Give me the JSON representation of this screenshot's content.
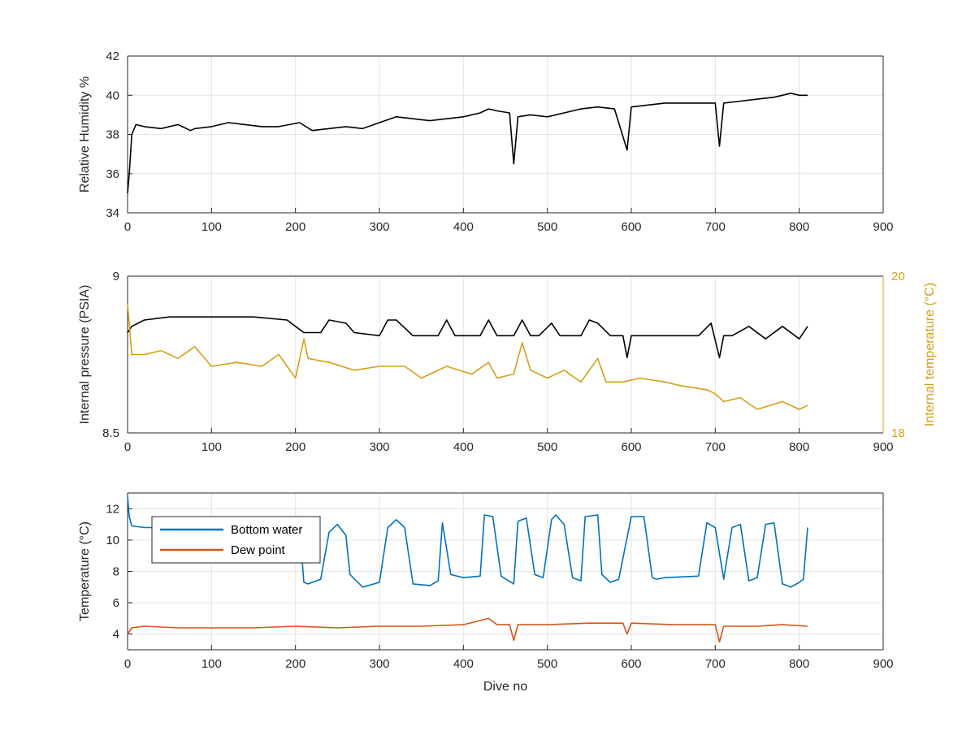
{
  "chart_data": [
    {
      "type": "line",
      "xlabel": "",
      "ylabel": "Relative Humidity %",
      "xlim": [
        0,
        900
      ],
      "ylim": [
        34,
        42
      ],
      "xticks": [
        "0",
        "100",
        "200",
        "300",
        "400",
        "500",
        "600",
        "700",
        "800",
        "900"
      ],
      "yticks": [
        "34",
        "36",
        "38",
        "40",
        "42"
      ],
      "grid": true,
      "series": [
        {
          "color": "#000000",
          "x": [
            0,
            2,
            5,
            10,
            20,
            40,
            60,
            75,
            80,
            100,
            120,
            140,
            160,
            180,
            205,
            220,
            240,
            260,
            280,
            300,
            320,
            340,
            360,
            380,
            400,
            420,
            430,
            440,
            455,
            460,
            465,
            480,
            500,
            520,
            540,
            560,
            580,
            595,
            600,
            620,
            640,
            660,
            680,
            700,
            705,
            710,
            730,
            750,
            770,
            780,
            790,
            800,
            810
          ],
          "y": [
            35,
            36,
            38,
            38.5,
            38.4,
            38.3,
            38.5,
            38.2,
            38.3,
            38.4,
            38.6,
            38.5,
            38.4,
            38.4,
            38.6,
            38.2,
            38.3,
            38.4,
            38.3,
            38.6,
            38.9,
            38.8,
            38.7,
            38.8,
            38.9,
            39.1,
            39.3,
            39.2,
            39.1,
            36.5,
            38.9,
            39.0,
            38.9,
            39.1,
            39.3,
            39.4,
            39.3,
            37.2,
            39.4,
            39.5,
            39.6,
            39.6,
            39.6,
            39.6,
            37.4,
            39.6,
            39.7,
            39.8,
            39.9,
            40.0,
            40.1,
            40.0,
            40.0
          ]
        }
      ]
    },
    {
      "type": "line",
      "xlabel": "",
      "ylabel": "Internal pressure (PSIA)",
      "ylabel_right": "Internal temperature (°C)",
      "xlim": [
        0,
        900
      ],
      "ylim": [
        8.5,
        9
      ],
      "ylim_right": [
        18,
        20
      ],
      "xticks": [
        "0",
        "100",
        "200",
        "300",
        "400",
        "500",
        "600",
        "700",
        "800",
        "900"
      ],
      "yticks": [
        "8.5",
        "9"
      ],
      "yticks_right": [
        "18",
        "20"
      ],
      "right_axis_color": "#D4A017",
      "grid": true,
      "series": [
        {
          "axis": "left",
          "color": "#000000",
          "x": [
            0,
            5,
            20,
            50,
            80,
            110,
            150,
            190,
            200,
            210,
            230,
            240,
            260,
            270,
            300,
            310,
            320,
            340,
            370,
            380,
            390,
            420,
            430,
            440,
            460,
            470,
            480,
            490,
            505,
            515,
            540,
            550,
            560,
            575,
            590,
            595,
            600,
            640,
            680,
            695,
            705,
            710,
            720,
            740,
            760,
            780,
            800,
            810
          ],
          "y": [
            8.82,
            8.84,
            8.86,
            8.87,
            8.87,
            8.87,
            8.87,
            8.86,
            8.84,
            8.82,
            8.82,
            8.86,
            8.85,
            8.82,
            8.81,
            8.86,
            8.86,
            8.81,
            8.81,
            8.86,
            8.81,
            8.81,
            8.86,
            8.81,
            8.81,
            8.86,
            8.81,
            8.81,
            8.85,
            8.81,
            8.81,
            8.86,
            8.85,
            8.81,
            8.81,
            8.74,
            8.81,
            8.81,
            8.81,
            8.85,
            8.74,
            8.81,
            8.81,
            8.84,
            8.8,
            8.84,
            8.8,
            8.84
          ]
        },
        {
          "axis": "right",
          "color": "#D4A017",
          "x": [
            0,
            5,
            20,
            40,
            60,
            80,
            100,
            130,
            160,
            180,
            200,
            210,
            215,
            240,
            270,
            300,
            330,
            350,
            380,
            410,
            430,
            440,
            460,
            470,
            480,
            500,
            520,
            540,
            560,
            570,
            590,
            610,
            640,
            660,
            690,
            700,
            710,
            730,
            750,
            780,
            800,
            810
          ],
          "y": [
            19.65,
            19.0,
            19.0,
            19.05,
            18.95,
            19.1,
            18.85,
            18.9,
            18.85,
            19.0,
            18.7,
            19.2,
            18.95,
            18.9,
            18.8,
            18.85,
            18.85,
            18.7,
            18.85,
            18.75,
            18.9,
            18.7,
            18.75,
            19.15,
            18.8,
            18.7,
            18.8,
            18.65,
            18.95,
            18.65,
            18.65,
            18.7,
            18.65,
            18.6,
            18.55,
            18.5,
            18.4,
            18.45,
            18.3,
            18.4,
            18.3,
            18.35
          ]
        }
      ]
    },
    {
      "type": "line",
      "xlabel": "Dive no",
      "ylabel": "Temperature (°C)",
      "xlim": [
        0,
        900
      ],
      "ylim": [
        3,
        13
      ],
      "xticks": [
        "0",
        "100",
        "200",
        "300",
        "400",
        "500",
        "600",
        "700",
        "800",
        "900"
      ],
      "yticks": [
        "4",
        "6",
        "8",
        "10",
        "12"
      ],
      "grid": true,
      "legend_position": "top-left",
      "series": [
        {
          "name": "Bottom water",
          "color": "#0072BD",
          "x": [
            0,
            2,
            5,
            20,
            100,
            205,
            210,
            215,
            230,
            240,
            250,
            260,
            265,
            280,
            300,
            310,
            320,
            330,
            340,
            360,
            370,
            375,
            385,
            400,
            420,
            425,
            435,
            445,
            460,
            465,
            475,
            485,
            495,
            505,
            510,
            520,
            530,
            540,
            545,
            560,
            565,
            575,
            585,
            600,
            615,
            625,
            630,
            640,
            680,
            690,
            700,
            710,
            720,
            730,
            740,
            750,
            760,
            770,
            780,
            790,
            800,
            805,
            810
          ],
          "y": [
            12.8,
            11.5,
            10.9,
            10.8,
            10.8,
            10.8,
            7.3,
            7.2,
            7.5,
            10.5,
            11.0,
            10.3,
            7.8,
            7.0,
            7.3,
            10.8,
            11.3,
            10.8,
            7.2,
            7.1,
            7.4,
            11.1,
            7.8,
            7.6,
            7.7,
            11.6,
            11.5,
            7.7,
            7.2,
            11.2,
            11.4,
            7.8,
            7.6,
            11.3,
            11.6,
            11.0,
            7.6,
            7.4,
            11.5,
            11.6,
            7.8,
            7.3,
            7.5,
            11.5,
            11.5,
            7.6,
            7.5,
            7.6,
            7.7,
            11.1,
            10.8,
            7.5,
            10.8,
            11.0,
            7.4,
            7.6,
            11.0,
            11.1,
            7.2,
            7.0,
            7.3,
            7.5,
            10.8
          ]
        },
        {
          "name": "Dew point",
          "color": "#D95319",
          "x": [
            0,
            5,
            20,
            60,
            100,
            150,
            200,
            250,
            300,
            350,
            400,
            430,
            440,
            455,
            460,
            465,
            500,
            550,
            590,
            595,
            600,
            650,
            700,
            705,
            710,
            750,
            780,
            810
          ],
          "y": [
            4.0,
            4.4,
            4.5,
            4.4,
            4.4,
            4.4,
            4.5,
            4.4,
            4.5,
            4.5,
            4.6,
            5.0,
            4.6,
            4.6,
            3.6,
            4.6,
            4.6,
            4.7,
            4.7,
            4.0,
            4.7,
            4.6,
            4.6,
            3.5,
            4.5,
            4.5,
            4.6,
            4.5
          ]
        }
      ]
    }
  ]
}
